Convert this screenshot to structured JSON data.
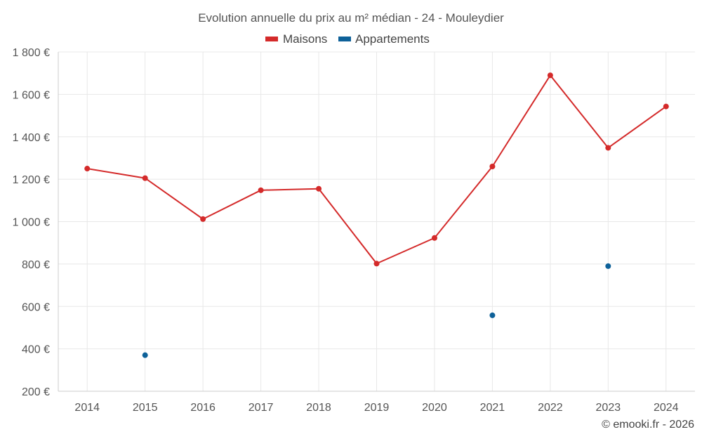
{
  "chart_data": {
    "type": "line",
    "title": "Evolution annuelle du prix au m² médian - 24 - Mouleydier",
    "categories": [
      "2014",
      "2015",
      "2016",
      "2017",
      "2018",
      "2019",
      "2020",
      "2021",
      "2022",
      "2023",
      "2024"
    ],
    "series": [
      {
        "name": "Maisons",
        "color": "#d42a2a",
        "values": [
          1250,
          1205,
          1012,
          1148,
          1155,
          802,
          923,
          1260,
          1690,
          1348,
          1543
        ]
      },
      {
        "name": "Appartements",
        "color": "#0e6199",
        "values": [
          null,
          370,
          null,
          null,
          null,
          null,
          null,
          558,
          null,
          790,
          null
        ]
      }
    ],
    "ylim": [
      200,
      1800
    ],
    "yticks": [
      200,
      400,
      600,
      800,
      1000,
      1200,
      1400,
      1600,
      1800
    ],
    "ytick_labels": [
      "200 €",
      "400 €",
      "600 €",
      "800 €",
      "1 000 €",
      "1 200 €",
      "1 400 €",
      "1 600 €",
      "1 800 €"
    ],
    "xlabel": "",
    "ylabel": "",
    "grid": true,
    "legend_position": "top-center"
  },
  "credit": "© emooki.fr - 2026"
}
